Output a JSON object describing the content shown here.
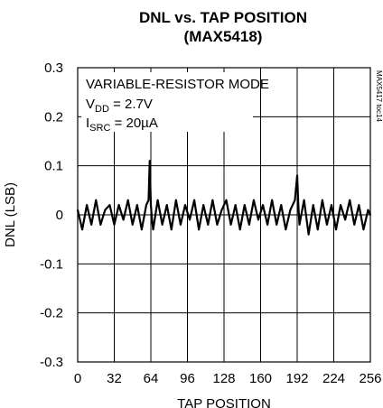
{
  "chart_data": {
    "type": "line",
    "title": "DNL vs. TAP POSITION",
    "subtitle": "(MAX5418)",
    "xlabel": "TAP POSITION",
    "ylabel": "DNL (LSB)",
    "xlim": [
      0,
      256
    ],
    "ylim": [
      -0.3,
      0.3
    ],
    "x_ticks": [
      "0",
      "32",
      "64",
      "96",
      "128",
      "160",
      "192",
      "224",
      "256"
    ],
    "y_ticks": [
      "0.3",
      "0.2",
      "0.1",
      "0",
      "-0.1",
      "-0.2",
      "-0.3"
    ],
    "grid": true,
    "annotation": {
      "mode": "VARIABLE-RESISTOR MODE",
      "vdd_main": "V",
      "vdd_sub": "DD",
      "vdd_rest": " = 2.7V",
      "isrc_main": "I",
      "isrc_sub": "SRC",
      "isrc_rest": " = 20µA"
    },
    "side_code": "MAX5417 toc14",
    "color": "#000000",
    "series": [
      {
        "x": [
          0,
          4,
          8,
          12,
          16,
          20,
          24,
          28,
          32,
          36,
          40,
          44,
          48,
          52,
          56,
          60,
          62,
          63,
          64,
          65,
          66,
          70,
          74,
          78,
          82,
          86,
          90,
          94,
          98,
          102,
          106,
          110,
          114,
          118,
          122,
          126,
          130,
          134,
          138,
          142,
          146,
          150,
          154,
          158,
          162,
          166,
          170,
          174,
          178,
          182,
          186,
          190,
          192,
          193,
          194,
          198,
          202,
          206,
          210,
          214,
          218,
          222,
          226,
          230,
          234,
          238,
          242,
          246,
          250,
          254,
          256
        ],
        "values": [
          0.01,
          -0.03,
          0.02,
          -0.02,
          0.03,
          -0.02,
          0.01,
          0.02,
          -0.02,
          0.02,
          -0.01,
          0.03,
          -0.02,
          0.02,
          -0.03,
          0.02,
          0.03,
          0.11,
          0.02,
          -0.01,
          -0.03,
          0.03,
          -0.02,
          0.02,
          -0.03,
          0.03,
          -0.02,
          0.02,
          -0.01,
          0.03,
          -0.03,
          0.02,
          -0.02,
          0.03,
          -0.02,
          0.01,
          0.03,
          -0.02,
          0.02,
          -0.03,
          0.02,
          -0.02,
          0.03,
          -0.01,
          0.02,
          -0.02,
          0.03,
          -0.02,
          0.02,
          -0.03,
          0.01,
          0.03,
          0.08,
          0.02,
          -0.02,
          0.03,
          -0.04,
          0.02,
          -0.03,
          0.03,
          -0.02,
          0.02,
          -0.03,
          0.02,
          -0.01,
          0.03,
          -0.02,
          0.02,
          -0.03,
          0.01,
          0.0
        ]
      }
    ]
  }
}
